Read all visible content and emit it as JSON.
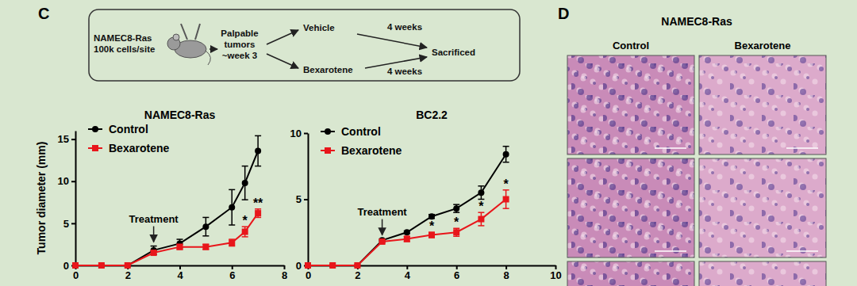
{
  "panel_labels": [
    "C",
    "D"
  ],
  "schematic": {
    "cell_line": "NAMEC8-Ras",
    "cells": "100k cells/site",
    "tumor": [
      "Palpable",
      "tumors",
      "~week 3"
    ],
    "arms": [
      "Vehicle",
      "Bexarotene"
    ],
    "durations": [
      "4 weeks",
      "4 weeks"
    ],
    "end": "Sacrificed"
  },
  "histology": {
    "title": "NAMEC8-Ras",
    "columns": [
      "Control",
      "Bexarotene"
    ]
  },
  "chart_data": [
    {
      "type": "line",
      "title": "NAMEC8-Ras",
      "y_label": "Tumor diameter (mm)",
      "x": [
        0,
        1,
        2,
        3,
        4,
        5,
        6,
        6.5,
        7
      ],
      "xlim": [
        0,
        8
      ],
      "xticks": [
        0,
        2,
        4,
        6,
        8
      ],
      "ylim": [
        0,
        16
      ],
      "yticks": [
        0,
        5,
        10,
        15
      ],
      "legend": "upper left",
      "series": [
        {
          "name": "Control",
          "color": "#000000",
          "marker": "circle",
          "values": [
            0,
            0,
            0,
            1.8,
            2.6,
            4.6,
            6.9,
            9.8,
            13.6
          ],
          "errors": [
            0,
            0,
            0,
            0.5,
            0.5,
            1.1,
            2.1,
            2.0,
            1.8
          ]
        },
        {
          "name": "Bexarotene",
          "color": "#e8161b",
          "marker": "square",
          "values": [
            0,
            0,
            0,
            1.5,
            2.2,
            2.2,
            2.7,
            4.0,
            6.2
          ],
          "errors": [
            0,
            0,
            0,
            0.2,
            0.3,
            0.3,
            0.4,
            0.6,
            0.5
          ]
        }
      ],
      "treatment": {
        "text": "Treatment",
        "x": 3
      },
      "significance": [
        {
          "text": "*",
          "x": 6.5
        },
        {
          "text": "**",
          "x": 7
        }
      ]
    },
    {
      "type": "line",
      "title": "BC2.2",
      "x": [
        0,
        1,
        2,
        3,
        4,
        5,
        6,
        7,
        8
      ],
      "xlim": [
        0,
        10
      ],
      "xticks": [
        0,
        2,
        4,
        6,
        8,
        10
      ],
      "ylim": [
        0,
        10
      ],
      "yticks": [
        0,
        5,
        10
      ],
      "legend": "upper left",
      "series": [
        {
          "name": "Control",
          "color": "#000000",
          "marker": "circle",
          "values": [
            0,
            0,
            0,
            1.9,
            2.5,
            3.7,
            4.3,
            5.5,
            8.4
          ],
          "errors": [
            0,
            0,
            0,
            0.1,
            0.1,
            0.15,
            0.3,
            0.5,
            0.6
          ]
        },
        {
          "name": "Bexarotene",
          "color": "#e8161b",
          "marker": "square",
          "values": [
            0,
            0,
            0,
            1.8,
            2.0,
            2.3,
            2.5,
            3.5,
            5.0
          ],
          "errors": [
            0,
            0,
            0,
            0.1,
            0.2,
            0.2,
            0.3,
            0.5,
            0.7
          ]
        }
      ],
      "treatment": {
        "text": "Treatment",
        "x": 3
      },
      "significance": [
        {
          "text": "*",
          "x": 5
        },
        {
          "text": "*",
          "x": 6
        },
        {
          "text": "*",
          "x": 7
        },
        {
          "text": "*",
          "x": 8
        }
      ]
    }
  ]
}
